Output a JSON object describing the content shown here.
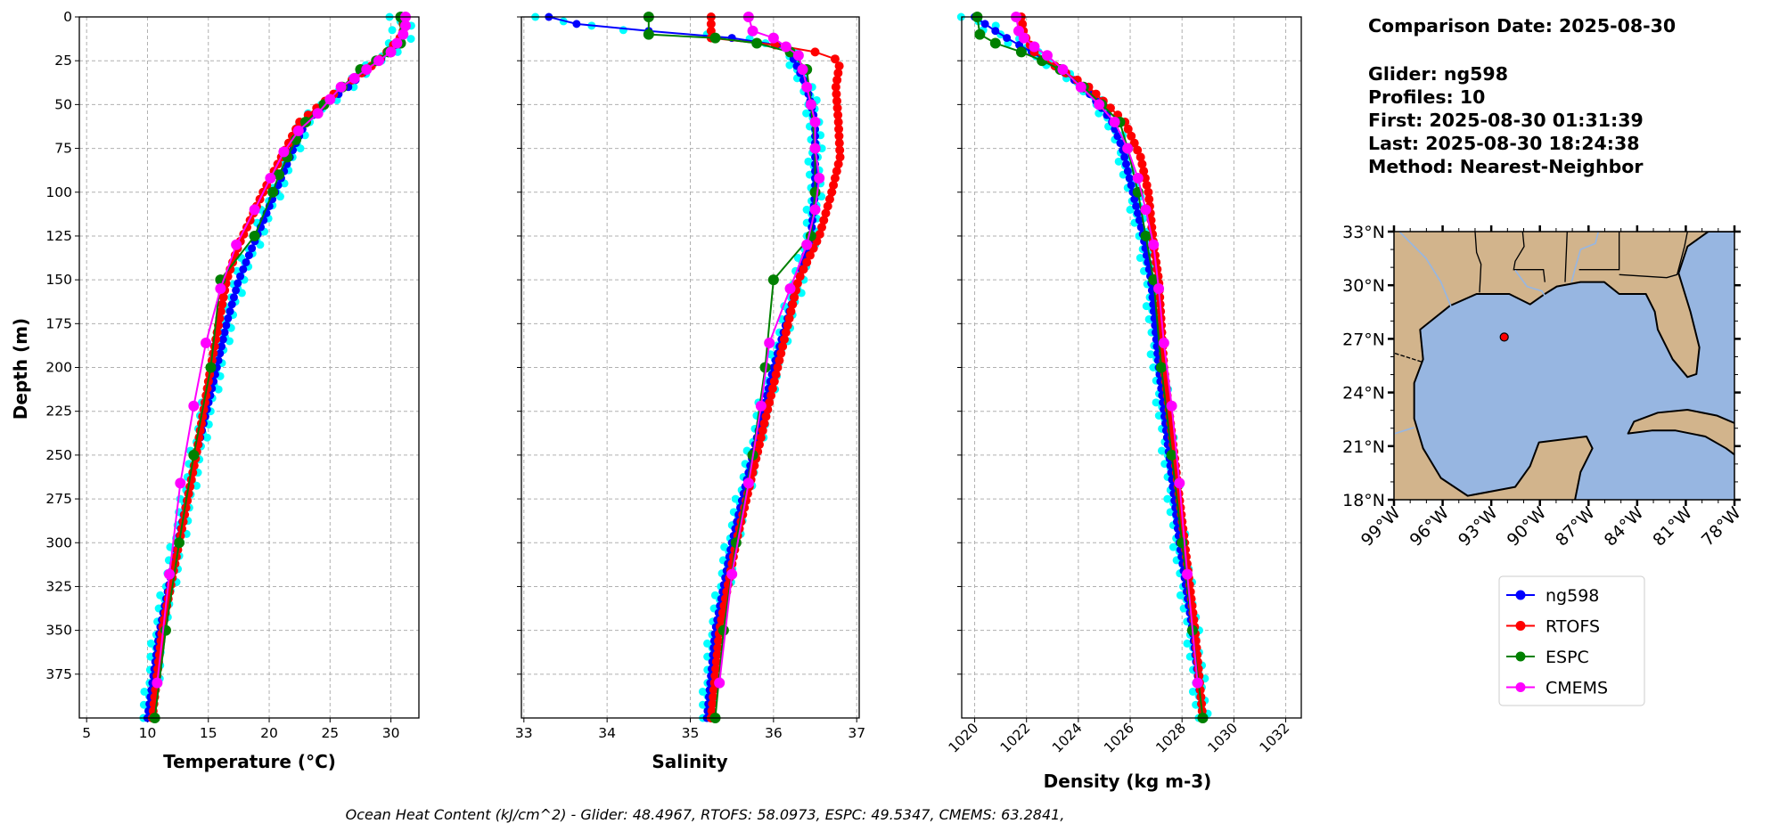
{
  "info": {
    "comparison_date": "Comparison Date: 2025-08-30",
    "glider": "Glider: ng598",
    "profiles": "Profiles: 10",
    "first": "First: 2025-08-30 01:31:39",
    "last": "Last: 2025-08-30 18:24:38",
    "method": "Method: Nearest-Neighbor"
  },
  "footer": "Ocean Heat Content (kJ/cm^2) - Glider: 48.4967,  RTOFS: 58.0973,  ESPC: 49.5347,  CMEMS: 63.2841,",
  "colors": {
    "ng598": "#0000ff",
    "glider_raw": "#00ffff",
    "RTOFS": "#ff0000",
    "ESPC": "#008000",
    "CMEMS": "#ff00ff",
    "land": "#d2b48c",
    "ocean": "#97b6e1"
  },
  "chart_data": [
    {
      "type": "line",
      "ylabel": "Depth (m)",
      "xlabel": "Temperature (°C)",
      "xlabel_main": "Temperature (",
      "xlabel_sup": "o",
      "xlabel_unit": "C)",
      "xlim": [
        4.4,
        32.3
      ],
      "ylim": [
        400,
        0
      ],
      "grid": true,
      "xticks": [
        5,
        10,
        15,
        20,
        25,
        30
      ],
      "yticks": [
        0,
        25,
        50,
        75,
        100,
        125,
        150,
        175,
        200,
        225,
        250,
        275,
        300,
        325,
        350,
        375
      ],
      "series": [
        {
          "name": "ng598",
          "depth": [
            0,
            10,
            20,
            30,
            40,
            50,
            60,
            75,
            100,
            125,
            150,
            175,
            200,
            250,
            300,
            350,
            400
          ],
          "values": [
            31,
            31,
            30,
            28,
            26.5,
            24.5,
            23,
            22,
            20.5,
            19,
            17.5,
            16.5,
            15.7,
            14,
            12.5,
            11,
            10
          ]
        },
        {
          "name": "RTOFS",
          "depth": [
            0,
            10,
            25,
            40,
            60,
            80,
            100,
            130,
            150,
            200,
            250,
            300,
            350,
            400
          ],
          "values": [
            31,
            31,
            29,
            26,
            22.5,
            21,
            19.5,
            17.5,
            16.5,
            15.2,
            14,
            12.6,
            11.2,
            10.4
          ]
        },
        {
          "name": "ESPC",
          "depth": [
            0,
            15,
            20,
            25,
            30,
            40,
            50,
            60,
            70,
            80,
            90,
            100,
            125,
            150,
            200,
            250,
            300,
            350,
            400
          ],
          "values": [
            30.8,
            30.8,
            29.8,
            28.8,
            27.5,
            26,
            24.5,
            23,
            22.2,
            21.5,
            20.8,
            20.3,
            18.8,
            16,
            15.2,
            13.8,
            12.6,
            11.5,
            10.6
          ]
        },
        {
          "name": "CMEMS",
          "depth": [
            0,
            5,
            10,
            15,
            20,
            25,
            30,
            35,
            40,
            47,
            55,
            65,
            77,
            92,
            110,
            130,
            155,
            186,
            222,
            266,
            318,
            380
          ],
          "values": [
            31.2,
            31.2,
            31,
            30.5,
            30,
            29,
            28,
            27,
            25.9,
            25,
            24,
            22.4,
            21.2,
            20.1,
            18.8,
            17.3,
            16,
            14.8,
            13.8,
            12.7,
            11.8,
            10.8
          ]
        }
      ]
    },
    {
      "type": "line",
      "xlabel": "Salinity",
      "xlim": [
        32.97,
        37.03
      ],
      "ylim": [
        400,
        0
      ],
      "grid": true,
      "xticks": [
        33,
        34,
        35,
        36,
        37
      ],
      "series": [
        {
          "name": "ng598",
          "depth": [
            0,
            6,
            10,
            12,
            15,
            20,
            40,
            60,
            80,
            100,
            125,
            150,
            175,
            200,
            250,
            300,
            350,
            400
          ],
          "values": [
            33.3,
            33.8,
            35.2,
            35.5,
            36.0,
            36.2,
            36.4,
            36.5,
            36.5,
            36.5,
            36.45,
            36.3,
            36.15,
            36.0,
            35.75,
            35.5,
            35.3,
            35.2
          ]
        },
        {
          "name": "RTOFS",
          "depth": [
            0,
            12,
            15,
            20,
            25,
            40,
            60,
            80,
            100,
            125,
            150,
            200,
            250,
            300,
            350,
            400
          ],
          "values": [
            35.25,
            35.25,
            35.9,
            36.5,
            36.8,
            36.75,
            36.78,
            36.8,
            36.7,
            36.55,
            36.3,
            36.05,
            35.8,
            35.55,
            35.35,
            35.25
          ]
        },
        {
          "name": "ESPC",
          "depth": [
            0,
            10,
            12,
            15,
            20,
            30,
            50,
            75,
            100,
            125,
            150,
            200,
            250,
            300,
            350,
            400
          ],
          "values": [
            34.5,
            34.5,
            35.3,
            35.8,
            36.2,
            36.4,
            36.45,
            36.5,
            36.5,
            36.45,
            36.0,
            35.9,
            35.75,
            35.55,
            35.4,
            35.3
          ]
        },
        {
          "name": "CMEMS",
          "depth": [
            0,
            8,
            12,
            17,
            22,
            30,
            40,
            50,
            60,
            75,
            92,
            110,
            130,
            155,
            186,
            222,
            266,
            318,
            380
          ],
          "values": [
            35.7,
            35.75,
            36.0,
            36.15,
            36.3,
            36.35,
            36.4,
            36.45,
            36.5,
            36.5,
            36.55,
            36.5,
            36.4,
            36.2,
            35.95,
            35.85,
            35.7,
            35.5,
            35.35
          ]
        }
      ]
    },
    {
      "type": "line",
      "xlabel": "Density (kg m-3)",
      "xlim": [
        1019.5,
        1032.6
      ],
      "ylim": [
        400,
        0
      ],
      "grid": true,
      "xticks": [
        1020,
        1022,
        1024,
        1026,
        1028,
        1030,
        1032
      ],
      "series": [
        {
          "name": "ng598",
          "depth": [
            0,
            5,
            10,
            20,
            30,
            40,
            50,
            60,
            75,
            100,
            125,
            150,
            200,
            250,
            300,
            350,
            400
          ],
          "values": [
            1020,
            1020.5,
            1021,
            1022.2,
            1023.3,
            1024.2,
            1024.8,
            1025.3,
            1025.7,
            1026.1,
            1026.5,
            1026.8,
            1027.1,
            1027.5,
            1027.9,
            1028.4,
            1028.8
          ]
        },
        {
          "name": "RTOFS",
          "depth": [
            0,
            10,
            20,
            30,
            40,
            60,
            80,
            100,
            130,
            150,
            200,
            250,
            300,
            350,
            400
          ],
          "values": [
            1021.8,
            1021.9,
            1022.3,
            1023.3,
            1024.4,
            1025.8,
            1026.4,
            1026.7,
            1026.9,
            1027.1,
            1027.3,
            1027.7,
            1028.1,
            1028.5,
            1028.8
          ]
        },
        {
          "name": "ESPC",
          "depth": [
            0,
            10,
            15,
            20,
            25,
            30,
            40,
            50,
            60,
            75,
            100,
            125,
            150,
            200,
            250,
            300,
            350,
            400
          ],
          "values": [
            1020.1,
            1020.2,
            1020.8,
            1021.8,
            1022.6,
            1023.3,
            1024.2,
            1024.9,
            1025.6,
            1025.9,
            1026.3,
            1026.6,
            1026.9,
            1027.2,
            1027.6,
            1028.0,
            1028.4,
            1028.8
          ]
        },
        {
          "name": "CMEMS",
          "depth": [
            0,
            8,
            12,
            17,
            22,
            30,
            40,
            50,
            60,
            75,
            92,
            110,
            130,
            155,
            186,
            222,
            266,
            318,
            380
          ],
          "values": [
            1021.6,
            1021.7,
            1021.9,
            1022.3,
            1022.8,
            1023.4,
            1024.1,
            1024.8,
            1025.4,
            1025.9,
            1026.3,
            1026.6,
            1026.9,
            1027.1,
            1027.3,
            1027.6,
            1027.9,
            1028.2,
            1028.6
          ]
        }
      ]
    }
  ],
  "map": {
    "lon_ticks": [
      "99°W",
      "96°W",
      "93°W",
      "90°W",
      "87°W",
      "84°W",
      "81°W",
      "78°W"
    ],
    "lat_ticks": [
      "33°N",
      "30°N",
      "27°N",
      "24°N",
      "21°N",
      "18°N"
    ],
    "lon_range": [
      -99,
      -78
    ],
    "lat_range": [
      18,
      33
    ],
    "glider_position": {
      "lon": -92.2,
      "lat": 27.1
    }
  },
  "legend": [
    "ng598",
    "RTOFS",
    "ESPC",
    "CMEMS"
  ]
}
